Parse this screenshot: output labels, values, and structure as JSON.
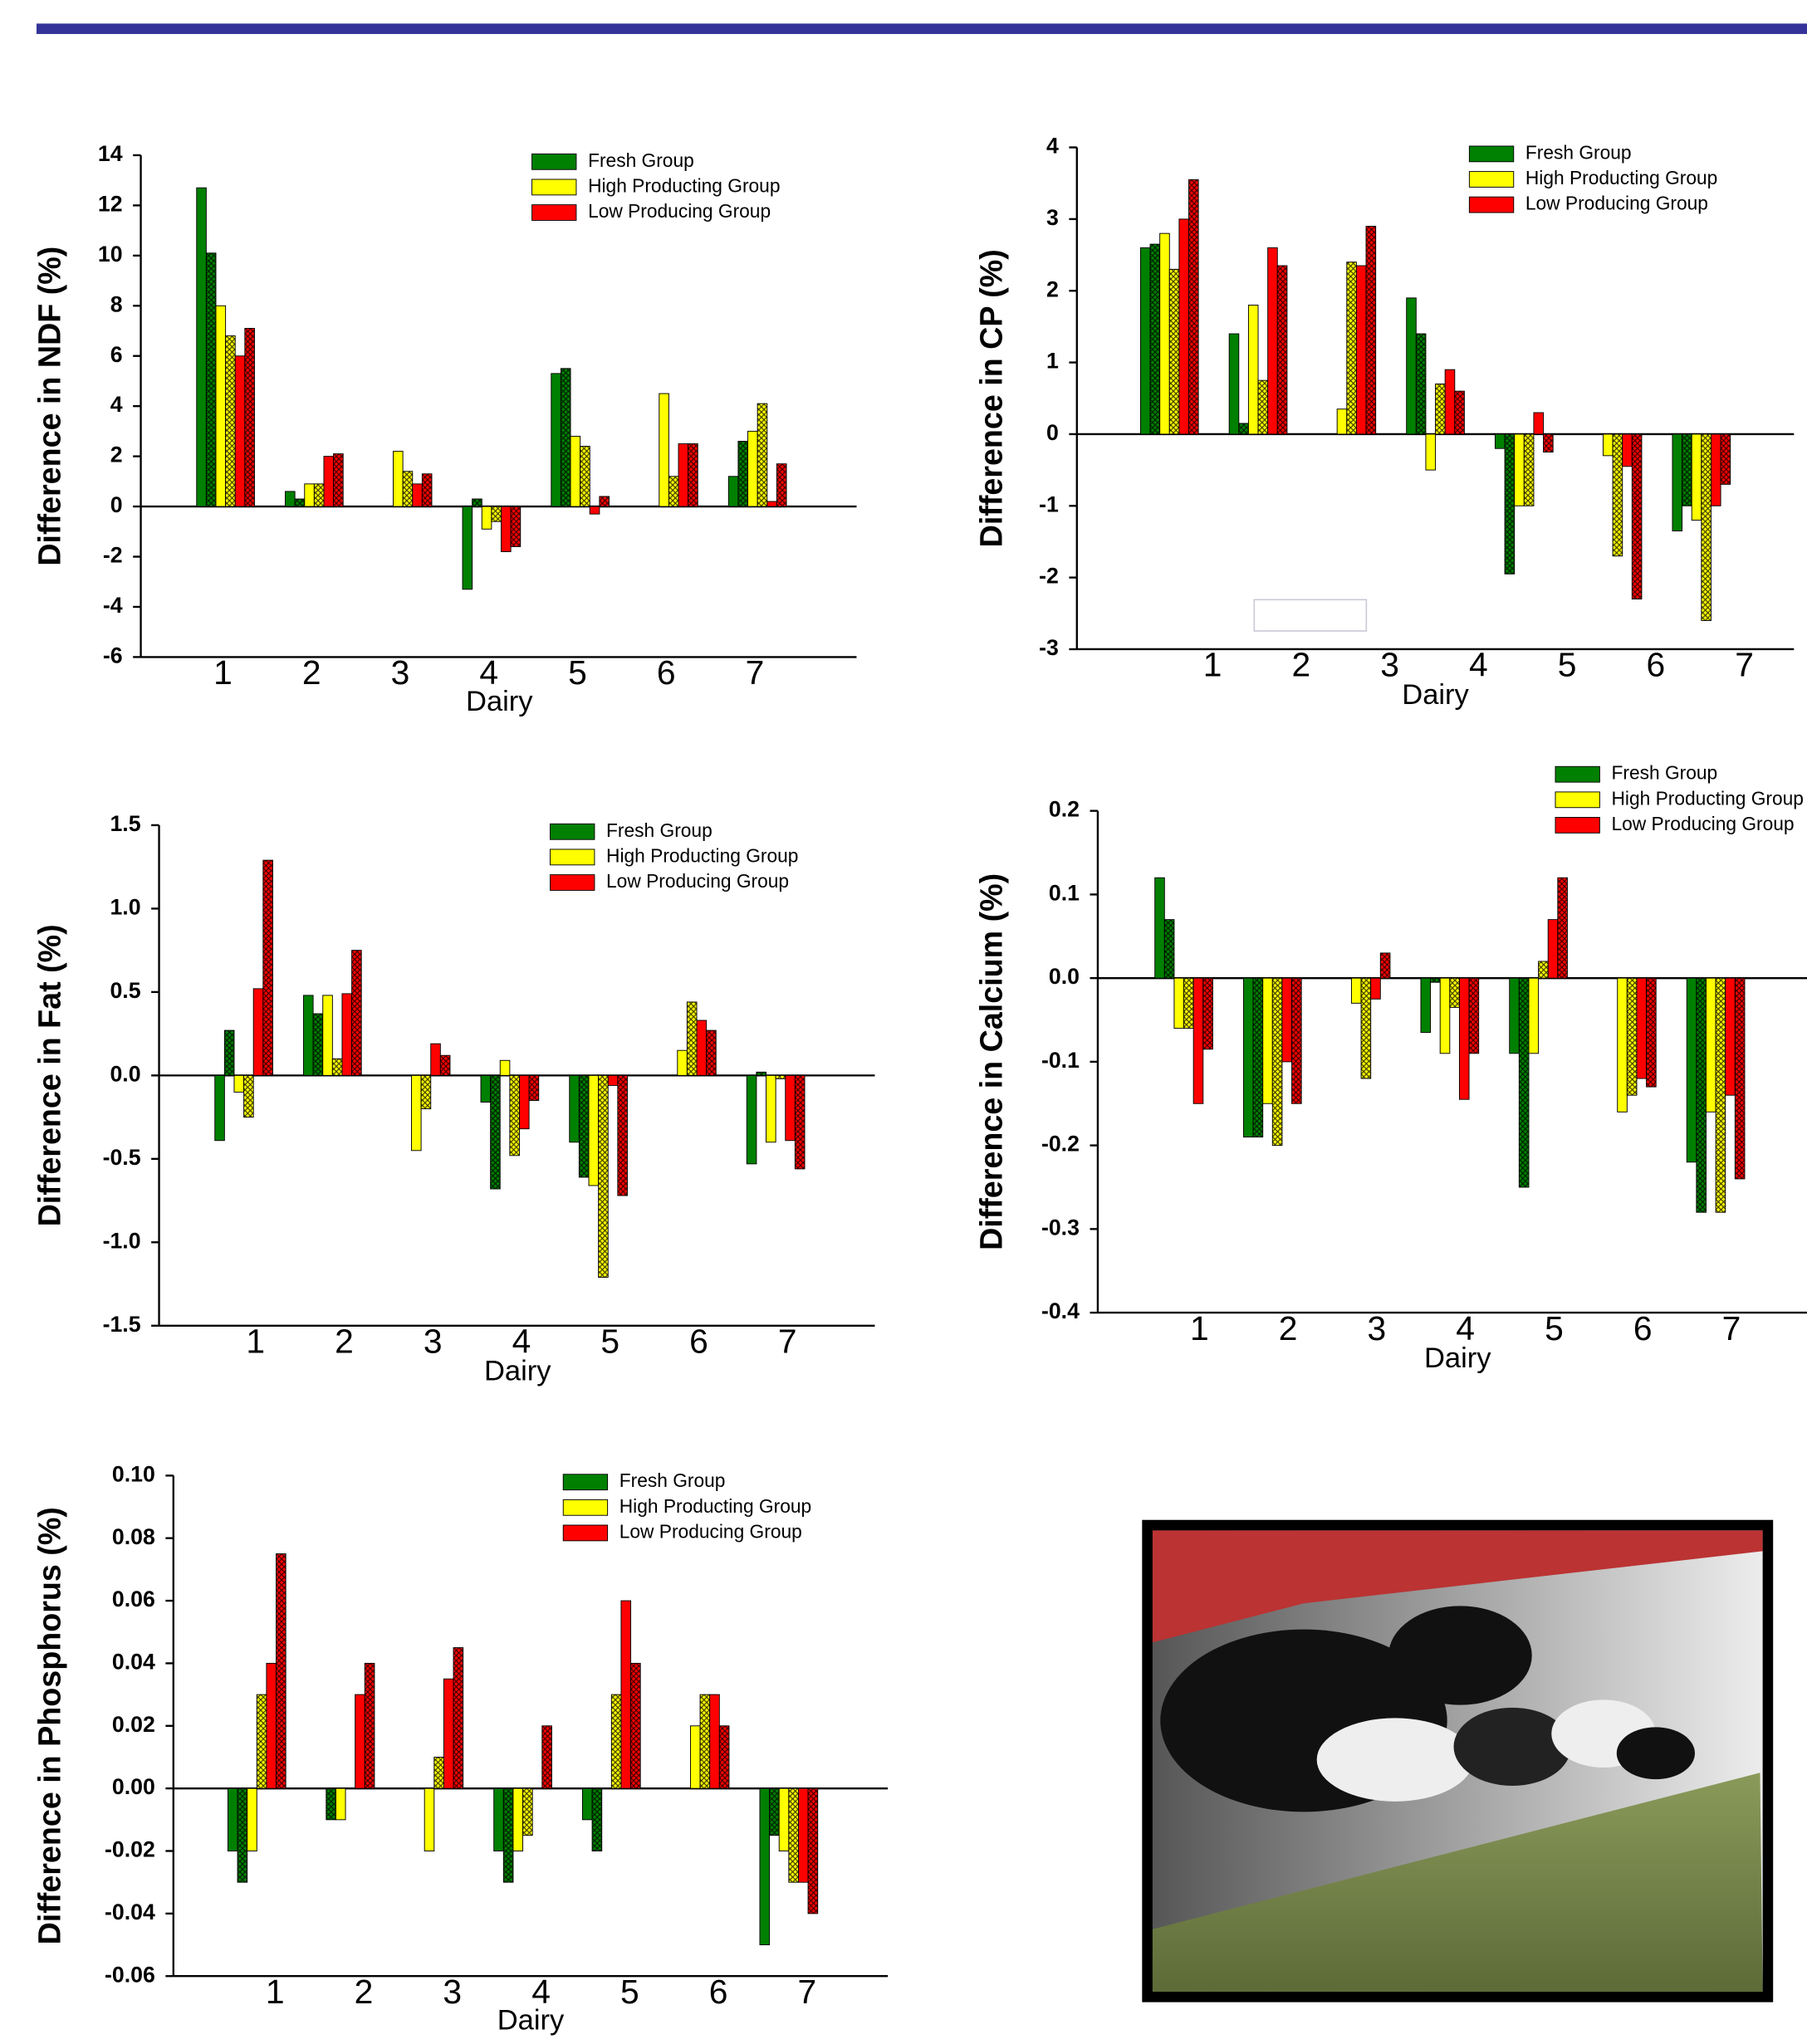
{
  "chart_data": [
    {
      "type": "bar",
      "y_label": "Difference in NDF (%)",
      "x_label": "Dairy",
      "categories": [
        "1",
        "2",
        "3",
        "4",
        "5",
        "6",
        "7"
      ],
      "series": [
        {
          "name": "Fresh Group",
          "color": "#008000",
          "values": [
            12.7,
            0.6,
            null,
            -3.3,
            5.3,
            null,
            1.2
          ],
          "hatched_values": [
            10.1,
            0.3,
            null,
            0.3,
            5.5,
            null,
            2.6
          ]
        },
        {
          "name": "High Producting Group",
          "color": "#ffff00",
          "values": [
            8.0,
            0.9,
            2.2,
            -0.9,
            2.8,
            4.5,
            3.0
          ],
          "hatched_values": [
            6.8,
            0.9,
            1.4,
            -0.6,
            2.4,
            1.2,
            4.1
          ]
        },
        {
          "name": "Low Producing Group",
          "color": "#ff0000",
          "values": [
            6.0,
            2.0,
            0.9,
            -1.8,
            -0.3,
            2.5,
            0.2
          ],
          "hatched_values": [
            7.1,
            2.1,
            1.3,
            -1.6,
            0.4,
            2.5,
            1.7
          ]
        }
      ],
      "ylim": [
        -6,
        14
      ],
      "yticks": [
        -6,
        -4,
        -2,
        0,
        2,
        4,
        6,
        8,
        10,
        12,
        14
      ]
    },
    {
      "type": "bar",
      "y_label": "Difference in CP (%)",
      "x_label": "Dairy",
      "categories": [
        "1",
        "2",
        "3",
        "4",
        "5",
        "6",
        "7"
      ],
      "series": [
        {
          "name": "Fresh Group",
          "color": "#008000",
          "values": [
            2.6,
            1.4,
            null,
            1.9,
            -0.2,
            null,
            -1.35
          ],
          "hatched_values": [
            2.65,
            0.15,
            null,
            1.4,
            -1.95,
            null,
            -1.0
          ]
        },
        {
          "name": "High Producting Group",
          "color": "#ffff00",
          "values": [
            2.8,
            1.8,
            0.35,
            -0.5,
            -1.0,
            -0.3,
            -1.2
          ],
          "hatched_values": [
            2.3,
            0.75,
            2.4,
            0.7,
            -1.0,
            -1.7,
            -2.6
          ]
        },
        {
          "name": "Low Producing Group",
          "color": "#ff0000",
          "values": [
            3.0,
            2.6,
            2.35,
            0.9,
            0.3,
            -0.45,
            -1.0
          ],
          "hatched_values": [
            3.55,
            2.35,
            2.9,
            0.6,
            -0.25,
            -2.3,
            -0.7
          ]
        }
      ],
      "ylim": [
        -3,
        4
      ],
      "yticks": [
        -3,
        -2,
        -1,
        0,
        1,
        2,
        3,
        4
      ]
    },
    {
      "type": "bar",
      "y_label": "Difference in Fat (%)",
      "x_label": "Dairy",
      "categories": [
        "1",
        "2",
        "3",
        "4",
        "5",
        "6",
        "7"
      ],
      "series": [
        {
          "name": "Fresh Group",
          "color": "#008000",
          "values": [
            -0.39,
            0.48,
            null,
            -0.16,
            -0.4,
            null,
            -0.53
          ],
          "hatched_values": [
            0.27,
            0.37,
            null,
            -0.68,
            -0.61,
            null,
            0.02
          ]
        },
        {
          "name": "High Producting Group",
          "color": "#ffff00",
          "values": [
            -0.1,
            0.48,
            -0.45,
            0.09,
            -0.66,
            0.15,
            -0.4
          ],
          "hatched_values": [
            -0.25,
            0.1,
            -0.2,
            -0.48,
            -1.21,
            0.44,
            -0.02
          ]
        },
        {
          "name": "Low Producing Group",
          "color": "#ff0000",
          "values": [
            0.52,
            0.49,
            0.19,
            -0.32,
            -0.06,
            0.33,
            -0.39
          ],
          "hatched_values": [
            1.29,
            0.75,
            0.12,
            -0.15,
            -0.72,
            0.27,
            -0.56
          ]
        }
      ],
      "ylim": [
        -1.5,
        1.5
      ],
      "yticks": [
        -1.5,
        {
          "value": -1,
          "label": "-1.0"
        },
        -0.5,
        {
          "value": 0,
          "label": "0.0"
        },
        0.5,
        {
          "value": 1,
          "label": "1.0"
        },
        1.5
      ]
    },
    {
      "type": "bar",
      "y_label": "Difference in Calcium (%)",
      "x_label": "Dairy",
      "categories": [
        "1",
        "2",
        "3",
        "4",
        "5",
        "6",
        "7"
      ],
      "series": [
        {
          "name": "Fresh Group",
          "color": "#008000",
          "values": [
            0.12,
            -0.19,
            null,
            -0.065,
            -0.09,
            null,
            -0.22
          ],
          "hatched_values": [
            0.07,
            -0.19,
            null,
            -0.005,
            -0.25,
            null,
            -0.28
          ]
        },
        {
          "name": "High Producting Group",
          "color": "#ffff00",
          "values": [
            -0.06,
            -0.15,
            -0.03,
            -0.09,
            -0.09,
            -0.16,
            -0.16
          ],
          "hatched_values": [
            -0.06,
            -0.2,
            -0.12,
            -0.035,
            0.02,
            -0.14,
            -0.28
          ]
        },
        {
          "name": "Low Producing Group",
          "color": "#ff0000",
          "values": [
            -0.15,
            -0.1,
            -0.025,
            -0.145,
            0.07,
            -0.12,
            -0.14
          ],
          "hatched_values": [
            -0.085,
            -0.15,
            0.03,
            -0.09,
            0.12,
            -0.13,
            -0.24
          ]
        }
      ],
      "ylim": [
        -0.4,
        0.2
      ],
      "yticks": [
        -0.4,
        -0.3,
        -0.2,
        -0.1,
        {
          "value": 0,
          "label": "0.0"
        },
        0.1,
        0.2
      ]
    },
    {
      "type": "bar",
      "y_label": "Difference in Phosphorus (%)",
      "x_label": "Dairy",
      "categories": [
        "1",
        "2",
        "3",
        "4",
        "5",
        "6",
        "7"
      ],
      "series": [
        {
          "name": "Fresh Group",
          "color": "#008000",
          "values": [
            -0.02,
            null,
            null,
            -0.02,
            -0.01,
            null,
            -0.05
          ],
          "hatched_values": [
            -0.03,
            -0.01,
            null,
            -0.03,
            -0.02,
            null,
            -0.015
          ]
        },
        {
          "name": "High Producting Group",
          "color": "#ffff00",
          "values": [
            -0.02,
            -0.01,
            -0.02,
            -0.02,
            null,
            0.02,
            -0.02
          ],
          "hatched_values": [
            0.03,
            null,
            0.01,
            -0.015,
            0.03,
            0.03,
            -0.03
          ]
        },
        {
          "name": "Low Producing Group",
          "color": "#ff0000",
          "values": [
            0.04,
            0.03,
            0.035,
            null,
            0.06,
            0.03,
            -0.03
          ],
          "hatched_values": [
            0.075,
            0.04,
            0.045,
            0.02,
            0.04,
            0.02,
            -0.04
          ]
        }
      ],
      "ylim": [
        -0.06,
        0.1
      ],
      "yticks": [
        -0.06,
        -0.04,
        -0.02,
        {
          "value": 0,
          "label": "0.00"
        },
        0.02,
        0.04,
        0.06,
        0.08,
        {
          "value": 0.1,
          "label": "0.10"
        }
      ]
    }
  ]
}
